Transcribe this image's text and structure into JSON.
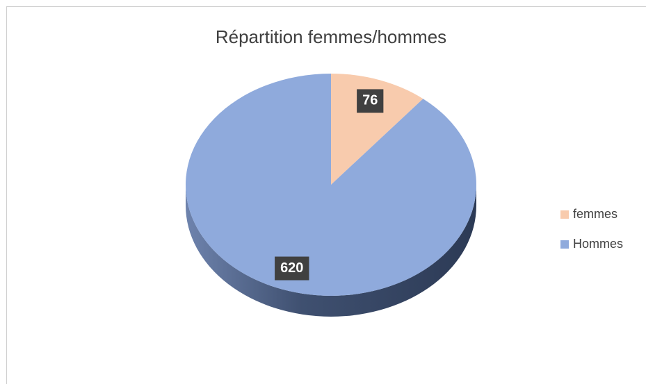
{
  "chart_data": {
    "type": "pie",
    "title": "Répartition femmes/hommes",
    "categories": [
      "femmes",
      "Hommes"
    ],
    "values": [
      76,
      620
    ],
    "colors": [
      "#f8cbad",
      "#8faadc"
    ],
    "legend": "right"
  }
}
